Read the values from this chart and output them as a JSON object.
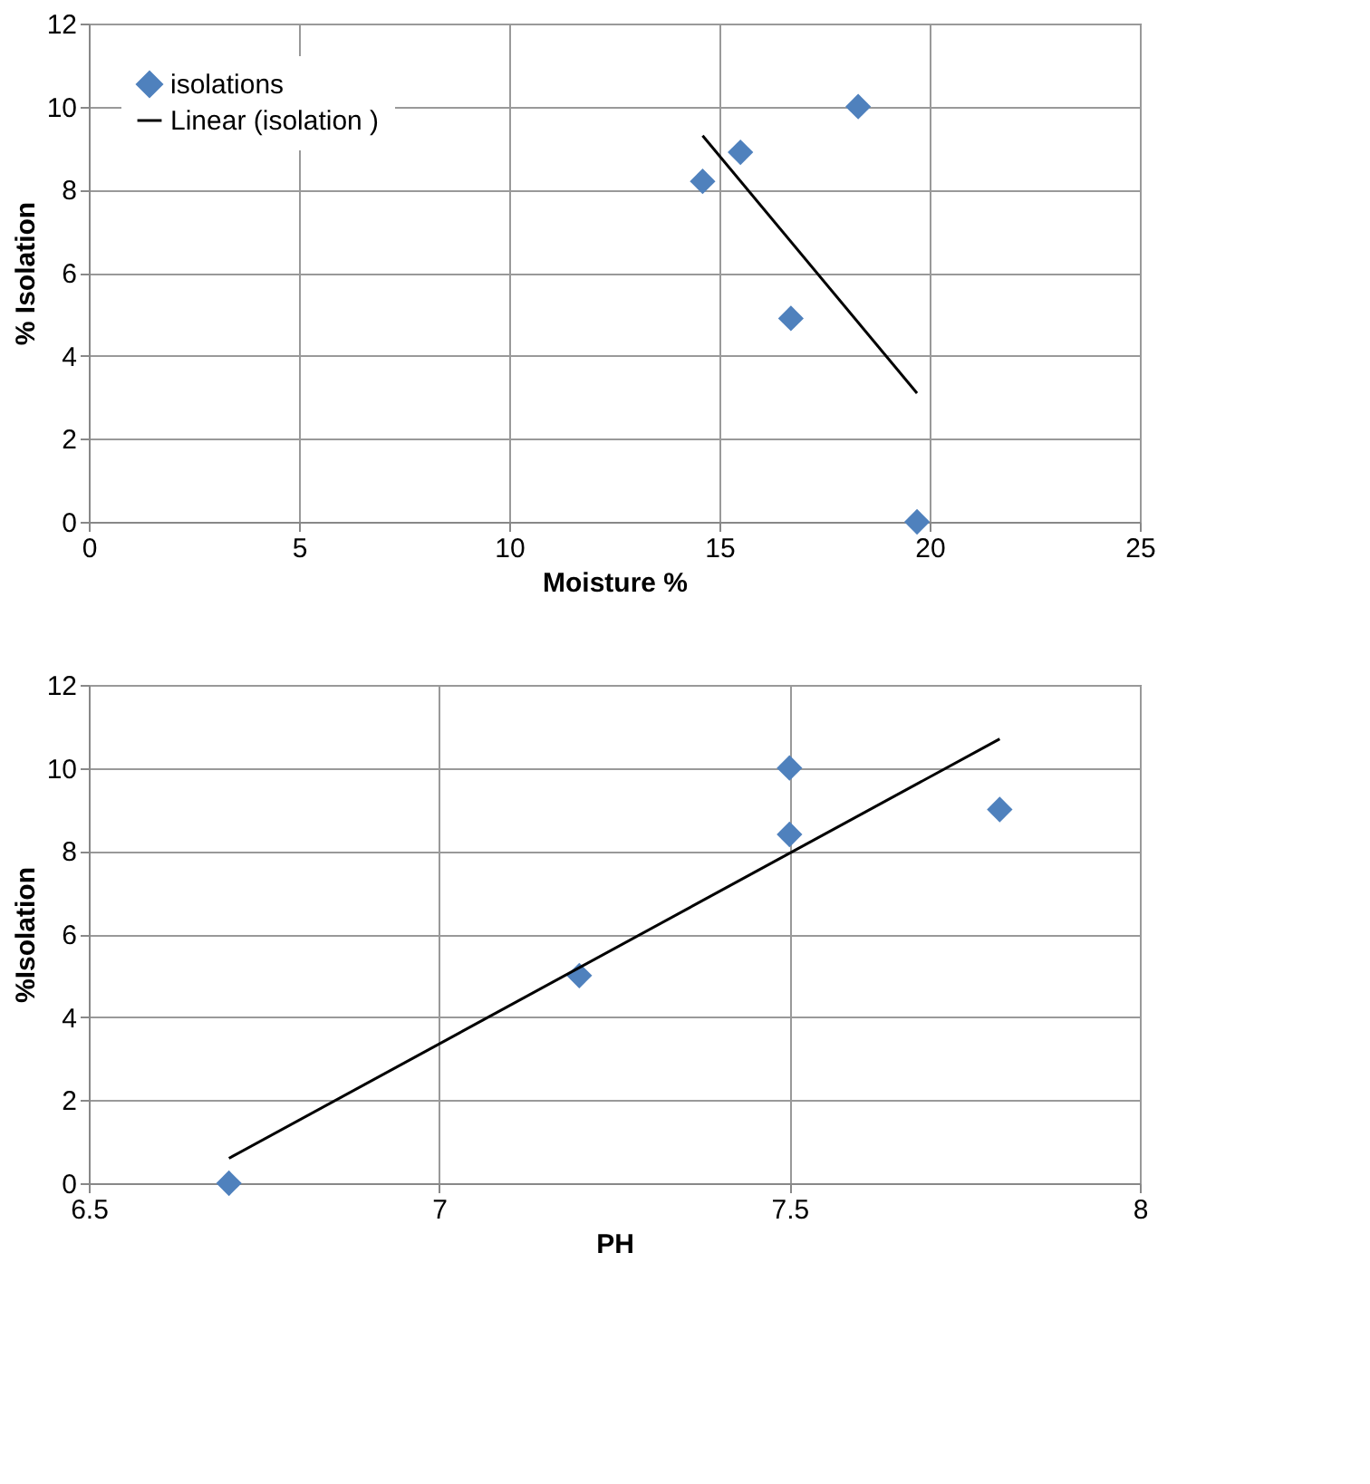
{
  "chart_data": [
    {
      "type": "scatter",
      "xlabel": "Moisture %",
      "ylabel": "% Isolation",
      "xlim": [
        0,
        25
      ],
      "xticks": [
        0,
        5,
        10,
        15,
        20,
        25
      ],
      "ylim": [
        0,
        12
      ],
      "yticks": [
        0,
        2,
        4,
        6,
        8,
        10,
        12
      ],
      "grid": true,
      "legend": "top left",
      "series": [
        {
          "name": "isolations",
          "color": "#4f81bd",
          "marker": "diamond",
          "x": [
            14.6,
            15.5,
            16.7,
            18.3,
            19.7
          ],
          "values": [
            8.2,
            8.9,
            4.9,
            10,
            0
          ]
        },
        {
          "name": "Linear (isolation )",
          "type": "line",
          "color": "#000000",
          "line_style": "solid",
          "x": [
            14.6,
            19.7
          ],
          "values": [
            9.3,
            3.1
          ]
        }
      ]
    },
    {
      "type": "scatter",
      "xlabel": "PH",
      "ylabel": "%Isolation",
      "xlim": [
        6.5,
        8
      ],
      "xticks": [
        6.5,
        7,
        7.5,
        8
      ],
      "ylim": [
        0,
        12
      ],
      "yticks": [
        0,
        2,
        4,
        6,
        8,
        10,
        12
      ],
      "grid": true,
      "series": [
        {
          "color": "#4f81bd",
          "marker": "diamond",
          "x": [
            6.7,
            7.2,
            7.5,
            7.5,
            7.8
          ],
          "values": [
            0,
            5,
            10,
            8.4,
            9
          ]
        },
        {
          "type": "line",
          "color": "#000000",
          "line_style": "solid",
          "x": [
            6.7,
            7.8
          ],
          "values": [
            0.6,
            10.7
          ]
        }
      ]
    }
  ]
}
